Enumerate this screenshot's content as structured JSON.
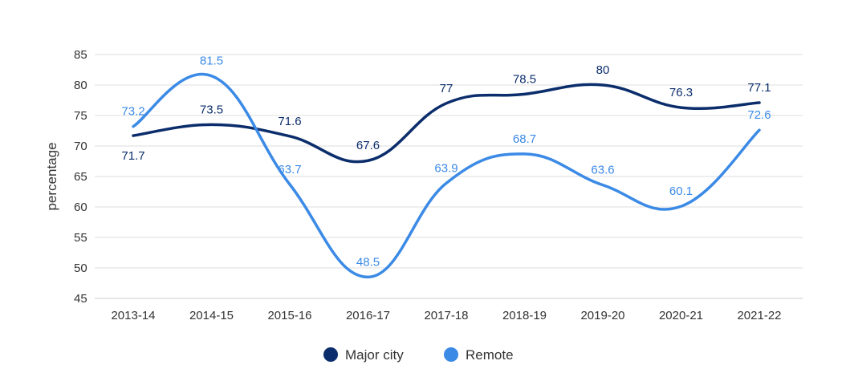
{
  "chart_data": {
    "type": "line",
    "title": "",
    "xlabel": "",
    "ylabel": "percentage",
    "ylim": [
      45,
      85
    ],
    "yticks": [
      45,
      50,
      55,
      60,
      65,
      70,
      75,
      80,
      85
    ],
    "grid": true,
    "legend_position": "bottom-center",
    "categories": [
      "2013-14",
      "2014-15",
      "2015-16",
      "2016-17",
      "2017-18",
      "2018-19",
      "2019-20",
      "2020-21",
      "2021-22"
    ],
    "series": [
      {
        "name": "Major city",
        "color": "#0b2d6b",
        "values": [
          71.7,
          73.5,
          71.6,
          67.6,
          77,
          78.5,
          80,
          76.3,
          77.1
        ],
        "labels": [
          "71.7",
          "73.5",
          "71.6",
          "67.6",
          "77",
          "78.5",
          "80",
          "76.3",
          "77.1"
        ],
        "label_positions": [
          "below",
          "above",
          "above",
          "above",
          "above",
          "above",
          "above",
          "above",
          "above"
        ]
      },
      {
        "name": "Remote",
        "color": "#3b8ae6",
        "values": [
          73.2,
          81.5,
          63.7,
          48.5,
          63.9,
          68.7,
          63.6,
          60.1,
          72.6
        ],
        "labels": [
          "73.2",
          "81.5",
          "63.7",
          "48.5",
          "63.9",
          "68.7",
          "63.6",
          "60.1",
          "72.6"
        ],
        "label_positions": [
          "above",
          "above",
          "above",
          "above",
          "above",
          "above",
          "above",
          "above",
          "above"
        ]
      }
    ]
  }
}
